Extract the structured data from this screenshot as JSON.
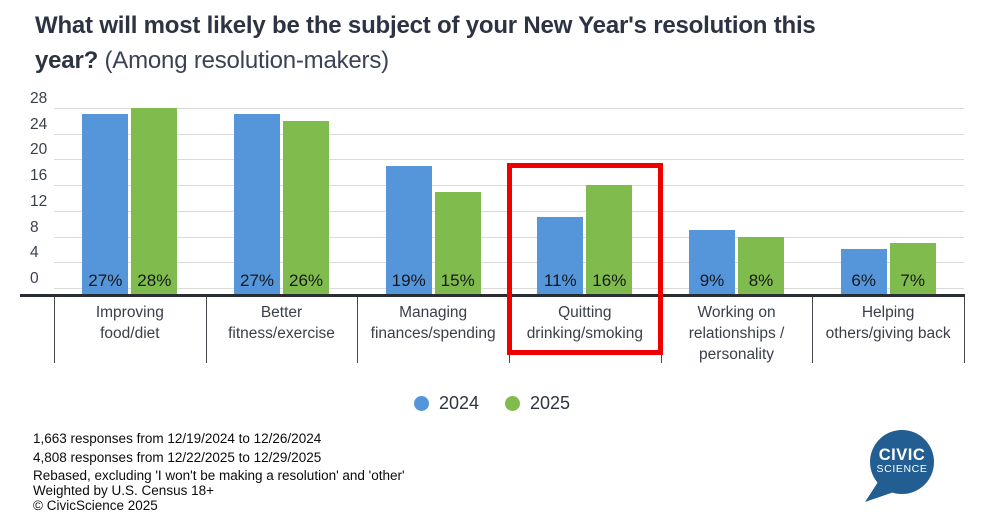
{
  "title": {
    "line1": "What will most likely be the subject of your New Year's resolution this",
    "line2_bold": "year?",
    "subtitle": "(Among resolution-makers)"
  },
  "chart_data": {
    "type": "bar",
    "title": "What will most likely be the subject of your New Year's resolution this year? (Among resolution-makers)",
    "categories": [
      "Improving\nfood/diet",
      "Better\nfitness/exercise",
      "Managing\nfinances/spending",
      "Quitting\ndrinking/smoking",
      "Working on\nrelationships /\npersonality",
      "Helping\nothers/giving back"
    ],
    "series": [
      {
        "name": "2024",
        "color": "#5596db",
        "values": [
          27,
          27,
          19,
          11,
          9,
          6
        ]
      },
      {
        "name": "2025",
        "color": "#80bb4d",
        "values": [
          28,
          26,
          15,
          16,
          8,
          7
        ]
      }
    ],
    "value_suffix": "%",
    "xlabel": "",
    "ylabel": "",
    "ylim": [
      0,
      28
    ],
    "yticks": [
      0,
      4,
      8,
      12,
      16,
      20,
      24,
      28
    ],
    "grid": true,
    "legend_position": "bottom",
    "highlight": {
      "category_index": 3,
      "category": "Quitting drinking/smoking",
      "color": "#ee0000"
    },
    "colors": {
      "grid": "#dadada",
      "axis_line": "#2a2e33",
      "bar_label_text": "#16181b"
    }
  },
  "footnotes": {
    "lines": [
      "1,663 responses from 12/19/2024 to 12/26/2024",
      "4,808 responses from 12/22/2025 to 12/29/2025",
      "Rebased, excluding 'I won't be making a resolution' and 'other'",
      "Weighted by U.S. Census 18+",
      "© CivicScience 2025"
    ]
  },
  "logo": {
    "line1": "CIVIC",
    "line2": "SCIENCE",
    "color": "#235e92"
  }
}
